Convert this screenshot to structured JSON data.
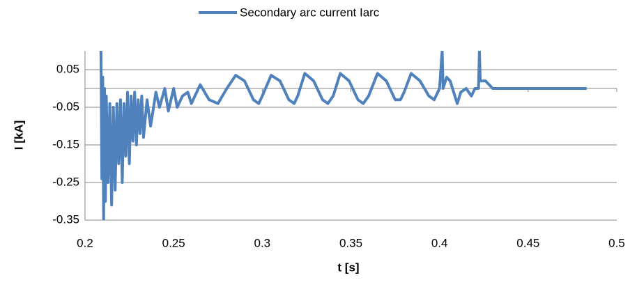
{
  "chart_data": {
    "type": "line",
    "x_label": "t [s]",
    "y_label": "I [kA]",
    "x": [
      0.209,
      0.2095,
      0.21,
      0.2105,
      0.211,
      0.2115,
      0.212,
      0.213,
      0.214,
      0.215,
      0.216,
      0.217,
      0.218,
      0.219,
      0.22,
      0.221,
      0.222,
      0.223,
      0.224,
      0.225,
      0.226,
      0.227,
      0.228,
      0.229,
      0.23,
      0.231,
      0.232,
      0.233,
      0.235,
      0.237,
      0.24,
      0.242,
      0.245,
      0.247,
      0.25,
      0.252,
      0.255,
      0.258,
      0.26,
      0.265,
      0.27,
      0.275,
      0.28,
      0.285,
      0.29,
      0.295,
      0.298,
      0.3,
      0.305,
      0.31,
      0.315,
      0.318,
      0.32,
      0.324,
      0.329,
      0.334,
      0.337,
      0.34,
      0.344,
      0.349,
      0.354,
      0.357,
      0.36,
      0.365,
      0.37,
      0.375,
      0.378,
      0.38,
      0.384,
      0.389,
      0.394,
      0.397,
      0.4,
      0.4015,
      0.402,
      0.404,
      0.406,
      0.408,
      0.41,
      0.412,
      0.415,
      0.418,
      0.42,
      0.422,
      0.4225,
      0.423,
      0.426,
      0.43,
      0.45,
      0.483
    ],
    "series": [
      {
        "name": "Secondary arc current Iarc",
        "color": "#4f81bd",
        "values": [
          0.1,
          -0.24,
          0.03,
          -0.35,
          0.0,
          -0.3,
          -0.02,
          -0.25,
          -0.04,
          -0.31,
          -0.05,
          -0.27,
          -0.04,
          -0.2,
          -0.03,
          -0.25,
          -0.04,
          -0.18,
          -0.01,
          -0.2,
          -0.02,
          -0.14,
          -0.01,
          -0.15,
          -0.03,
          -0.12,
          -0.02,
          -0.13,
          -0.03,
          -0.1,
          -0.01,
          -0.05,
          0.0,
          -0.06,
          0.0,
          -0.05,
          -0.02,
          -0.01,
          -0.04,
          0.01,
          -0.03,
          -0.04,
          0.0,
          0.035,
          0.02,
          -0.03,
          -0.04,
          -0.02,
          0.035,
          0.02,
          -0.03,
          -0.04,
          -0.02,
          0.04,
          0.02,
          -0.03,
          -0.04,
          -0.02,
          0.04,
          0.02,
          -0.03,
          -0.04,
          -0.02,
          0.04,
          0.02,
          -0.03,
          -0.03,
          -0.01,
          0.04,
          0.02,
          -0.02,
          -0.03,
          0.0,
          0.1,
          0.0,
          0.03,
          0.02,
          -0.01,
          -0.04,
          -0.01,
          0.0,
          -0.02,
          0.0,
          0.0,
          0.1,
          0.02,
          0.02,
          0.0,
          0.0,
          0.0
        ]
      }
    ],
    "xlim": [
      0.2,
      0.5
    ],
    "xticks": [
      0.2,
      0.25,
      0.3,
      0.35,
      0.4,
      0.45,
      0.5
    ],
    "ylim": [
      -0.35,
      0.1
    ],
    "yticks": [
      0.05,
      -0.05,
      -0.15,
      -0.25,
      -0.35
    ],
    "grid": true,
    "legend": "top"
  }
}
